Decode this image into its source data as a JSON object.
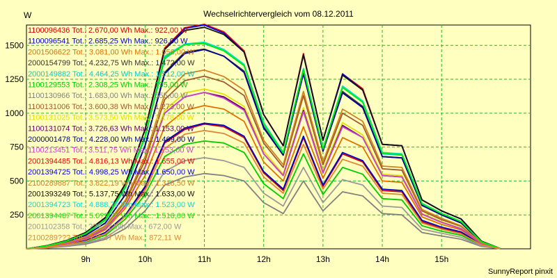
{
  "chart_data": {
    "type": "line",
    "title": "Wechselrichtervergleich vom 08.12.2011",
    "ylabel": "W",
    "ylim": [
      0,
      1650
    ],
    "xlim": [
      8.0,
      16.5
    ],
    "yticks": [
      250,
      500,
      750,
      1000,
      1250,
      1500
    ],
    "xticks": [
      9,
      10,
      11,
      12,
      13,
      14,
      15
    ],
    "xtick_labels": [
      "9h",
      "10h",
      "11h",
      "12h",
      "13h",
      "14h",
      "15h"
    ],
    "grid": true,
    "legend": "top-left",
    "footer": "SunnyReport pinxit",
    "x": [
      8.0,
      8.33,
      8.67,
      9.0,
      9.33,
      9.67,
      10.0,
      10.33,
      10.67,
      11.0,
      11.33,
      11.67,
      12.0,
      12.33,
      12.67,
      13.0,
      13.33,
      13.67,
      14.0,
      14.33,
      14.67,
      15.0,
      15.33,
      15.67,
      16.0
    ],
    "series": [
      {
        "name": "1100096436",
        "legend": "1100096436 Tot.: 2.670,00 Wh Max.: 922,00 W",
        "color": "#cc0000",
        "values": [
          0,
          10,
          30,
          60,
          120,
          250,
          450,
          780,
          880,
          920,
          900,
          820,
          560,
          430,
          820,
          460,
          700,
          640,
          430,
          420,
          200,
          150,
          120,
          30,
          0
        ]
      },
      {
        "name": "1100096541",
        "legend": "1100096541 Tot.: 2.685,25 Wh Max.: 926,00 W",
        "color": "#0000cc",
        "values": [
          0,
          10,
          30,
          60,
          120,
          250,
          460,
          790,
          890,
          926,
          910,
          830,
          570,
          440,
          830,
          470,
          710,
          650,
          440,
          430,
          210,
          160,
          125,
          32,
          0
        ]
      },
      {
        "name": "2001506622",
        "legend": "2001506622 Tot.: 3.081,00 Wh Max.: 1.056,00 W",
        "color": "#e07000",
        "values": [
          0,
          12,
          35,
          70,
          140,
          300,
          540,
          900,
          1020,
          1056,
          1030,
          940,
          640,
          500,
          900,
          520,
          820,
          750,
          500,
          490,
          235,
          180,
          140,
          36,
          0
        ]
      },
      {
        "name": "2000154799",
        "legend": "2000154799 Tot.: 4.232,75 Wh Max.: 1.472,00 W",
        "color": "#333333",
        "values": [
          0,
          18,
          50,
          100,
          190,
          400,
          760,
          1300,
          1450,
          1472,
          1420,
          1310,
          900,
          690,
          1300,
          720,
          1160,
          1050,
          680,
          670,
          320,
          250,
          190,
          50,
          0
        ]
      },
      {
        "name": "2000149882",
        "legend": "2000149882 Tot.: 4.464,25 Wh Max.: 1.512,00 W",
        "color": "#00cccc",
        "values": [
          0,
          20,
          55,
          110,
          210,
          450,
          820,
          1400,
          1510,
          1512,
          1460,
          1350,
          920,
          700,
          1320,
          730,
          1190,
          1080,
          700,
          690,
          330,
          260,
          200,
          52,
          0
        ]
      },
      {
        "name": "1100129553",
        "legend": "1100129553 Tot.: 2.308,25 Wh Max.: 795,00 W",
        "color": "#00cc00",
        "values": [
          0,
          8,
          25,
          50,
          100,
          220,
          400,
          680,
          770,
          795,
          780,
          710,
          480,
          370,
          700,
          400,
          600,
          550,
          370,
          360,
          170,
          130,
          100,
          26,
          0
        ]
      },
      {
        "name": "1100130966",
        "legend": "1100130966 Tot.: 1.683,00 Wh Max.: 555,00 W",
        "color": "#808080",
        "values": [
          0,
          6,
          18,
          35,
          70,
          150,
          280,
          470,
          530,
          555,
          540,
          500,
          340,
          260,
          500,
          280,
          420,
          390,
          260,
          250,
          120,
          95,
          70,
          18,
          0
        ]
      },
      {
        "name": "1100131006",
        "legend": "1100131006 Tot.: 3.600,38 Wh Max.: 1.273,00 W",
        "color": "#a05a2c",
        "values": [
          0,
          15,
          42,
          85,
          165,
          350,
          650,
          1100,
          1240,
          1273,
          1230,
          1130,
          780,
          600,
          1130,
          620,
          1000,
          910,
          590,
          580,
          280,
          215,
          165,
          43,
          0
        ]
      },
      {
        "name": "1100131025",
        "legend": "1100131025 Tot.: 3.573,50 Wh Max.: 1.178,00 W",
        "color": "#e0e000",
        "values": [
          0,
          14,
          40,
          80,
          155,
          330,
          610,
          1020,
          1150,
          1178,
          1140,
          1050,
          720,
          550,
          1040,
          580,
          930,
          840,
          550,
          540,
          260,
          200,
          150,
          40,
          0
        ]
      },
      {
        "name": "1100131074",
        "legend": "1100131074 Tot.: 3.726,63 Wh Max.: 1.153,00 W",
        "color": "#660066",
        "values": [
          0,
          14,
          39,
          78,
          150,
          320,
          600,
          1000,
          1120,
          1153,
          1120,
          1030,
          700,
          540,
          1020,
          560,
          910,
          820,
          540,
          530,
          255,
          195,
          148,
          39,
          0
        ]
      },
      {
        "name": "2000001478",
        "legend": "2000001478 Tot.: 4.228,00 Wh Max.: 1.469,00 W",
        "color": "#000099",
        "values": [
          0,
          18,
          50,
          100,
          190,
          400,
          760,
          1290,
          1440,
          1469,
          1420,
          1300,
          890,
          690,
          1290,
          720,
          1150,
          1040,
          680,
          670,
          320,
          250,
          190,
          50,
          0
        ]
      },
      {
        "name": "1100213451",
        "legend": "1100213451 Tot.: 3.511,75 Wh Max.: 1.153,00 W",
        "color": "#cc44cc",
        "values": [
          0,
          14,
          39,
          78,
          150,
          320,
          600,
          1000,
          1120,
          1153,
          1110,
          1020,
          700,
          540,
          1010,
          560,
          900,
          820,
          540,
          530,
          255,
          195,
          148,
          39,
          0
        ]
      },
      {
        "name": "2001394485",
        "legend": "2001394485 Tot.: 4.816,13 Wh Max.: 1.655,00 W",
        "color": "#ee0000",
        "values": [
          0,
          22,
          60,
          120,
          230,
          480,
          880,
          1480,
          1630,
          1655,
          1600,
          1460,
          990,
          760,
          1440,
          800,
          1290,
          1180,
          770,
          760,
          360,
          280,
          220,
          57,
          0
        ]
      },
      {
        "name": "2001394725",
        "legend": "2001394725 Tot.: 4.998,25 Wh Max.: 1.650,00 W",
        "color": "#0000ee",
        "values": [
          0,
          22,
          60,
          120,
          230,
          480,
          880,
          1470,
          1625,
          1650,
          1590,
          1450,
          990,
          760,
          1430,
          800,
          1290,
          1170,
          770,
          760,
          360,
          280,
          220,
          57,
          0
        ]
      },
      {
        "name": "2100289887",
        "legend": "2100289887 Tot.: 3.822,19 Wh Max.: 1.318,50 W",
        "color": "#d08020",
        "values": [
          0,
          16,
          44,
          88,
          170,
          360,
          680,
          1140,
          1290,
          1318,
          1270,
          1170,
          800,
          620,
          1160,
          640,
          1030,
          940,
          610,
          600,
          290,
          225,
          170,
          45,
          0
        ]
      },
      {
        "name": "2001393249",
        "legend": "2001393249 Tot.: 5.137,75 Wh Max.: 1.633,00 W",
        "color": "#111111",
        "values": [
          0,
          22,
          60,
          120,
          230,
          480,
          880,
          1470,
          1610,
          1633,
          1580,
          1450,
          990,
          760,
          1430,
          800,
          1280,
          1170,
          770,
          760,
          360,
          280,
          220,
          57,
          0
        ]
      },
      {
        "name": "2001394723",
        "legend": "2001394723 Tot.: 4.888,75 Wh Max.: 1.523,00 W",
        "color": "#00dddd",
        "values": [
          0,
          20,
          56,
          112,
          215,
          460,
          830,
          1420,
          1510,
          1523,
          1470,
          1360,
          930,
          710,
          1330,
          740,
          1200,
          1090,
          710,
          700,
          335,
          262,
          202,
          53,
          0
        ]
      },
      {
        "name": "2001394487",
        "legend": "2001394487 Tot.: 5.0??,?? Wh Max.: 1.516,00 W",
        "color": "#00ee00",
        "values": [
          0,
          20,
          56,
          112,
          215,
          460,
          830,
          1410,
          1505,
          1516,
          1460,
          1350,
          920,
          705,
          1320,
          735,
          1190,
          1080,
          705,
          695,
          332,
          260,
          200,
          52,
          0
        ]
      },
      {
        "name": "2001102358",
        "legend": "2001102358 Tot.: ???,?? Wh Max.: 672,00 W",
        "color": "#999999",
        "values": [
          0,
          7,
          21,
          42,
          82,
          180,
          340,
          570,
          650,
          672,
          650,
          600,
          410,
          315,
          600,
          340,
          510,
          470,
          315,
          305,
          145,
          115,
          85,
          22,
          0
        ]
      },
      {
        "name": "2100289???",
        "legend": "2100289??? Tot.: ???,47 Wh Max.: 872,11 W",
        "color": "#dd8833",
        "values": [
          0,
          9,
          28,
          55,
          110,
          240,
          430,
          740,
          845,
          872,
          850,
          780,
          530,
          410,
          770,
          440,
          660,
          610,
          410,
          400,
          190,
          145,
          110,
          29,
          0
        ]
      }
    ]
  }
}
